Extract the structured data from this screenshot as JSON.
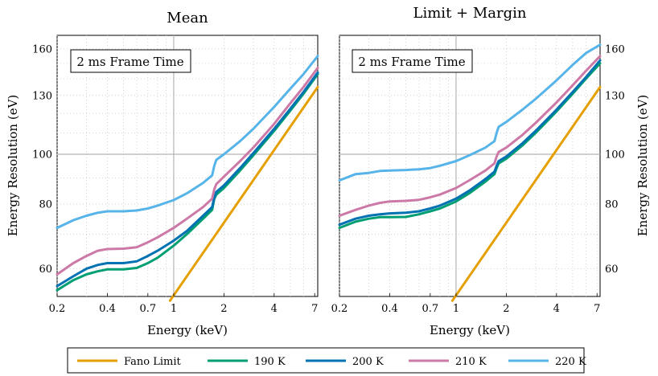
{
  "colors": {
    "fano": "#E69F00",
    "k190": "#009E73",
    "k200": "#0072B2",
    "k210": "#CC79A7",
    "k220": "#56B4E9"
  },
  "legend": [
    {
      "label": "Fano Limit",
      "color": "#E69F00"
    },
    {
      "label": "190 K",
      "color": "#009E73"
    },
    {
      "label": "200 K",
      "color": "#0072B2"
    },
    {
      "label": "210 K",
      "color": "#CC79A7"
    },
    {
      "label": "220 K",
      "color": "#56B4E9"
    }
  ],
  "chart_data": [
    {
      "type": "line",
      "title": "Mean",
      "annotation": "2 ms Frame Time",
      "xlabel": "Energy (keV)",
      "ylabel": "Energy Resolution (eV)",
      "xscale": "log",
      "yscale": "log",
      "xlim": [
        0.2,
        7.3
      ],
      "ylim": [
        53,
        170
      ],
      "xticks": [
        0.2,
        0.4,
        0.7,
        1,
        2,
        4,
        7
      ],
      "xtick_labels": [
        "0.2",
        "0.4",
        "0.7",
        "1",
        "2",
        "4",
        "7"
      ],
      "yticks": [
        60,
        80,
        100,
        130,
        160
      ],
      "ytick_labels": [
        "60",
        "80",
        "100",
        "130",
        "160"
      ],
      "x": [
        0.2,
        0.25,
        0.3,
        0.35,
        0.4,
        0.5,
        0.6,
        0.7,
        0.8,
        1.0,
        1.2,
        1.5,
        1.7,
        1.75,
        1.8,
        2.0,
        2.5,
        3.0,
        4.0,
        5.0,
        6.0,
        7.3
      ],
      "series": [
        {
          "name": "Fano Limit",
          "x": [
            0.95,
            7.3
          ],
          "values": [
            52,
            135
          ]
        },
        {
          "name": "190 K",
          "values": [
            54.5,
            57.0,
            58.5,
            59.3,
            59.8,
            59.8,
            60.2,
            61.5,
            63.0,
            66.5,
            70.0,
            75.0,
            78.0,
            82.0,
            83.5,
            86.0,
            93.0,
            99.5,
            111.0,
            121.5,
            131.0,
            143.0
          ]
        },
        {
          "name": "200 K",
          "values": [
            55.5,
            58.0,
            60.0,
            61.0,
            61.5,
            61.5,
            62.0,
            63.5,
            65.0,
            68.0,
            71.0,
            76.0,
            79.0,
            82.5,
            84.5,
            87.0,
            94.0,
            100.5,
            112.0,
            122.5,
            132.0,
            144.0
          ]
        },
        {
          "name": "210 K",
          "values": [
            58.5,
            61.5,
            63.5,
            65.0,
            65.5,
            65.6,
            66.0,
            67.5,
            69.0,
            72.0,
            75.0,
            79.0,
            82.0,
            85.5,
            87.5,
            90.5,
            97.0,
            103.0,
            114.5,
            125.5,
            135.0,
            147.0
          ]
        },
        {
          "name": "220 K",
          "values": [
            72.0,
            74.5,
            76.0,
            77.0,
            77.5,
            77.5,
            77.8,
            78.5,
            79.5,
            81.5,
            84.0,
            88.0,
            91.0,
            95.0,
            97.5,
            100.0,
            106.0,
            112.0,
            123.5,
            134.0,
            143.0,
            155.0
          ]
        }
      ]
    },
    {
      "type": "line",
      "title": "Limit + Margin",
      "annotation": "2 ms Frame Time",
      "xlabel": "Energy (keV)",
      "ylabel": "Energy Resolution (eV)",
      "xscale": "log",
      "yscale": "log",
      "xlim": [
        0.2,
        7.3
      ],
      "ylim": [
        53,
        170
      ],
      "xticks": [
        0.2,
        0.4,
        0.7,
        1,
        2,
        4,
        7
      ],
      "xtick_labels": [
        "0.2",
        "0.4",
        "0.7",
        "1",
        "2",
        "4",
        "7"
      ],
      "yticks": [
        60,
        80,
        100,
        130,
        160
      ],
      "ytick_labels": [
        "60",
        "80",
        "100",
        "130",
        "160"
      ],
      "x": [
        0.2,
        0.25,
        0.3,
        0.35,
        0.4,
        0.5,
        0.6,
        0.7,
        0.8,
        1.0,
        1.2,
        1.5,
        1.7,
        1.75,
        1.8,
        2.0,
        2.5,
        3.0,
        4.0,
        5.0,
        6.0,
        7.3
      ],
      "series": [
        {
          "name": "Fano Limit",
          "x": [
            0.95,
            7.3
          ],
          "values": [
            52,
            135
          ]
        },
        {
          "name": "190 K",
          "values": [
            72.0,
            74.0,
            75.0,
            75.5,
            75.5,
            75.6,
            76.5,
            77.5,
            78.5,
            81.0,
            84.0,
            88.5,
            91.5,
            94.0,
            96.0,
            98.0,
            104.0,
            110.0,
            121.0,
            131.0,
            140.0,
            150.0
          ]
        },
        {
          "name": "200 K",
          "values": [
            73.0,
            75.0,
            76.0,
            76.5,
            76.8,
            77.0,
            77.5,
            78.5,
            79.5,
            82.0,
            85.0,
            89.5,
            92.5,
            95.0,
            97.0,
            99.0,
            105.0,
            111.0,
            122.0,
            132.0,
            141.0,
            152.0
          ]
        },
        {
          "name": "210 K",
          "values": [
            76.0,
            78.0,
            79.5,
            80.5,
            81.0,
            81.2,
            81.6,
            82.5,
            83.5,
            86.0,
            89.0,
            93.0,
            96.0,
            99.0,
            101.0,
            103.0,
            109.0,
            115.0,
            126.0,
            136.0,
            145.0,
            155.0
          ]
        },
        {
          "name": "220 K",
          "values": [
            89.0,
            91.5,
            92.0,
            92.8,
            93.0,
            93.2,
            93.5,
            94.0,
            95.0,
            97.0,
            99.5,
            103.0,
            106.0,
            110.0,
            113.0,
            115.5,
            122.0,
            128.0,
            139.0,
            149.0,
            157.0,
            163.0
          ]
        }
      ]
    }
  ]
}
